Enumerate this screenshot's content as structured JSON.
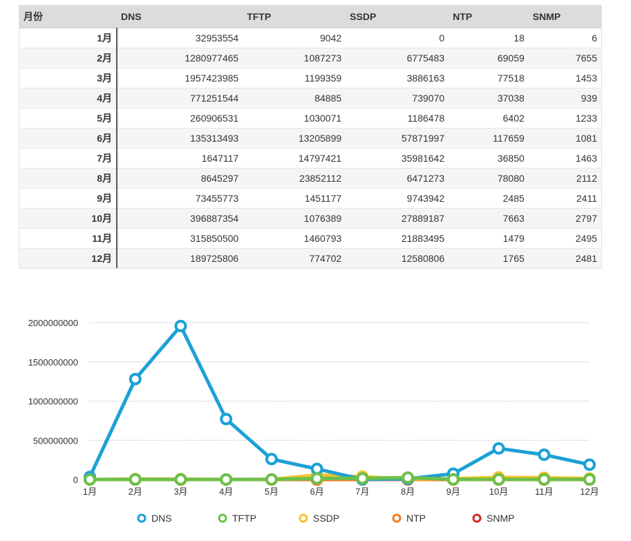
{
  "table": {
    "headers": [
      "月份",
      "DNS",
      "TFTP",
      "SSDP",
      "NTP",
      "SNMP"
    ],
    "rows": [
      [
        "1月",
        "32953554",
        "9042",
        "0",
        "18",
        "6"
      ],
      [
        "2月",
        "1280977465",
        "1087273",
        "6775483",
        "69059",
        "7655"
      ],
      [
        "3月",
        "1957423985",
        "1199359",
        "3886163",
        "77518",
        "1453"
      ],
      [
        "4月",
        "771251544",
        "84885",
        "739070",
        "37038",
        "939"
      ],
      [
        "5月",
        "260906531",
        "1030071",
        "1186478",
        "6402",
        "1233"
      ],
      [
        "6月",
        "135313493",
        "13205899",
        "57871997",
        "117659",
        "1081"
      ],
      [
        "7月",
        "1647117",
        "14797421",
        "35981642",
        "36850",
        "1463"
      ],
      [
        "8月",
        "8645297",
        "23852112",
        "6471273",
        "78080",
        "2112"
      ],
      [
        "9月",
        "73455773",
        "1451177",
        "9743942",
        "2485",
        "2411"
      ],
      [
        "10月",
        "396887354",
        "1076389",
        "27889187",
        "7663",
        "2797"
      ],
      [
        "11月",
        "315850500",
        "1460793",
        "21883495",
        "1479",
        "2495"
      ],
      [
        "12月",
        "189725806",
        "774702",
        "12580806",
        "1765",
        "2481"
      ]
    ]
  },
  "chart_data": {
    "type": "line",
    "categories": [
      "1月",
      "2月",
      "3月",
      "4月",
      "5月",
      "6月",
      "7月",
      "8月",
      "9月",
      "10月",
      "11月",
      "12月"
    ],
    "ylim": [
      0,
      2000000000
    ],
    "yticks": [
      "0",
      "500000000",
      "1000000000",
      "1500000000",
      "2000000000"
    ],
    "grid": true,
    "legend_position": "bottom",
    "series": [
      {
        "name": "DNS",
        "color": "#1ba1d6",
        "values": [
          32953554,
          1280977465,
          1957423985,
          771251544,
          260906531,
          135313493,
          1647117,
          8645297,
          73455773,
          396887354,
          315850500,
          189725806
        ]
      },
      {
        "name": "TFTP",
        "color": "#6cc04a",
        "values": [
          9042,
          1087273,
          1199359,
          84885,
          1030071,
          13205899,
          14797421,
          23852112,
          1451177,
          1076389,
          1460793,
          774702
        ]
      },
      {
        "name": "SSDP",
        "color": "#f5c22a",
        "values": [
          0,
          6775483,
          3886163,
          739070,
          1186478,
          57871997,
          35981642,
          6471273,
          9743942,
          27889187,
          21883495,
          12580806
        ]
      },
      {
        "name": "NTP",
        "color": "#f47a20",
        "values": [
          18,
          69059,
          77518,
          37038,
          6402,
          117659,
          36850,
          78080,
          2485,
          7663,
          1479,
          1765
        ]
      },
      {
        "name": "SNMP",
        "color": "#d42a1e",
        "values": [
          6,
          7655,
          1453,
          939,
          1233,
          1081,
          1463,
          2112,
          2411,
          2797,
          2495,
          2481
        ]
      }
    ]
  }
}
